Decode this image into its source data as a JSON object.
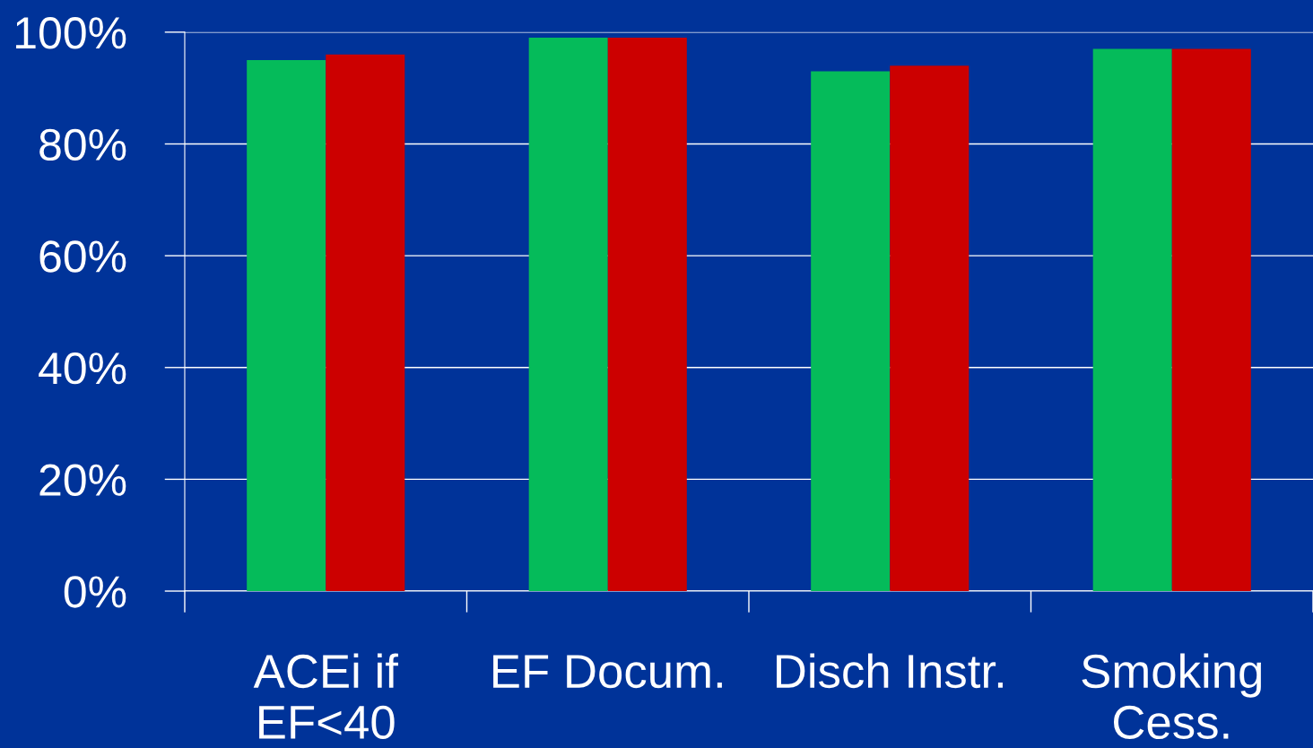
{
  "chart_data": {
    "type": "bar",
    "categories": [
      "ACEi if\nEF<40",
      "EF Docum.",
      "Disch Instr.",
      "Smoking\nCess."
    ],
    "series": [
      {
        "color": "#05bb5a",
        "values": [
          95,
          99,
          93,
          97
        ]
      },
      {
        "color": "#cc0000",
        "values": [
          96,
          99,
          94,
          97
        ]
      }
    ],
    "ylim": [
      0,
      100
    ],
    "yticks": [
      {
        "value": 0,
        "label": "0%"
      },
      {
        "value": 20,
        "label": "20%"
      },
      {
        "value": 40,
        "label": "40%"
      },
      {
        "value": 60,
        "label": "60%"
      },
      {
        "value": 80,
        "label": "80%"
      },
      {
        "value": 100,
        "label": "100%"
      }
    ],
    "grid": "y"
  }
}
